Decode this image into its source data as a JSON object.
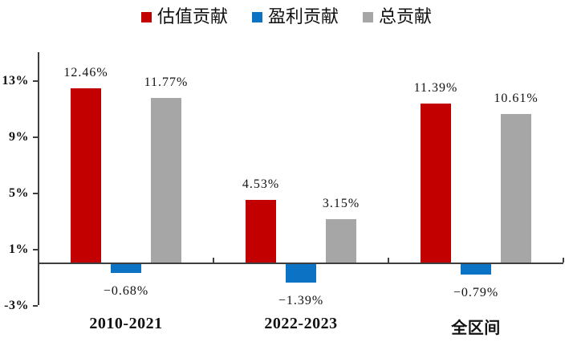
{
  "chart_data": {
    "type": "bar",
    "title": "",
    "xlabel": "",
    "ylabel": "",
    "categories": [
      "2010-2021",
      "2022-2023",
      "全区间"
    ],
    "series": [
      {
        "name": "估值贡献",
        "color": "#C30000",
        "values": [
          12.46,
          4.53,
          11.39
        ]
      },
      {
        "name": "盈利贡献",
        "color": "#0B72C4",
        "values": [
          -0.68,
          -1.39,
          -0.79
        ]
      },
      {
        "name": "总贡献",
        "color": "#A6A6A6",
        "values": [
          11.77,
          3.15,
          10.61
        ]
      }
    ],
    "value_labels": [
      [
        "12.46%",
        "4.53%",
        "11.39%"
      ],
      [
        "-0.68%",
        "-1.39%",
        "-0.79%"
      ],
      [
        "11.77%",
        "3.15%",
        "10.61%"
      ]
    ],
    "y_tick_labels": [
      "13%",
      "9%",
      "5%",
      "1%",
      "-3%"
    ],
    "y_tick_values": [
      13,
      9,
      5,
      1,
      -3
    ],
    "ylim": [
      -3,
      15
    ],
    "grid": false,
    "legend_position": "top",
    "axis_color": "#3f3f3f",
    "background_color": "#ffffff"
  }
}
